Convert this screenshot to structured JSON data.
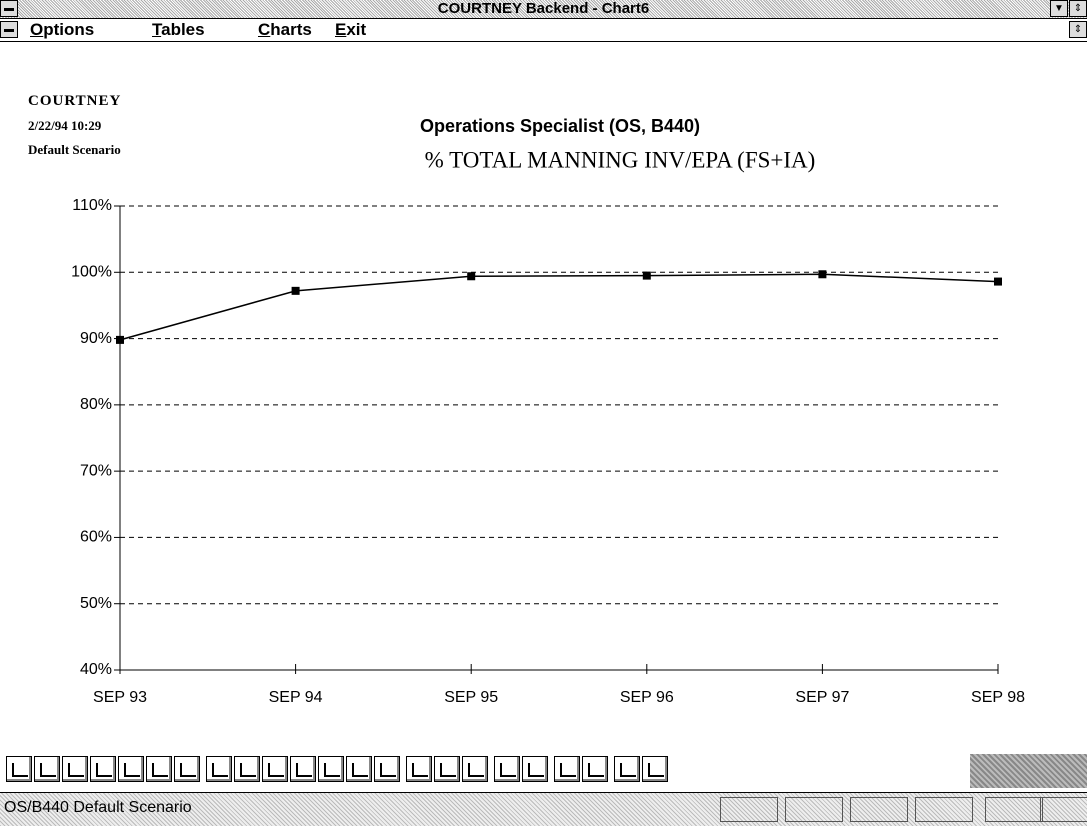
{
  "window": {
    "title": "COURTNEY Backend - Chart6"
  },
  "menu": [
    "Options",
    "Tables",
    "Charts",
    "Exit"
  ],
  "header": {
    "app": "COURTNEY",
    "timestamp": "2/22/94 10:29",
    "scenario": "Default Scenario"
  },
  "chart_data": {
    "type": "line",
    "subtitle": "Operations Specialist (OS, B440)",
    "title": "% TOTAL MANNING INV/EPA (FS+IA)",
    "categories": [
      "SEP 93",
      "SEP 94",
      "SEP 95",
      "SEP 96",
      "SEP 97",
      "SEP 98"
    ],
    "series": [
      {
        "name": "% Total Manning",
        "color": "#000000",
        "values": [
          89.8,
          97.2,
          99.4,
          99.5,
          99.7,
          98.6
        ]
      }
    ],
    "ylim": [
      40,
      110
    ],
    "yticks": [
      {
        "value": 40,
        "label": "40%"
      },
      {
        "value": 50,
        "label": "50%"
      },
      {
        "value": 60,
        "label": "60%"
      },
      {
        "value": 70,
        "label": "70%"
      },
      {
        "value": 80,
        "label": "80%"
      },
      {
        "value": 90,
        "label": "90%"
      },
      {
        "value": 100,
        "label": "100%"
      },
      {
        "value": 110,
        "label": "110%"
      }
    ],
    "grid": true
  },
  "status": "OS/B440  Default Scenario"
}
